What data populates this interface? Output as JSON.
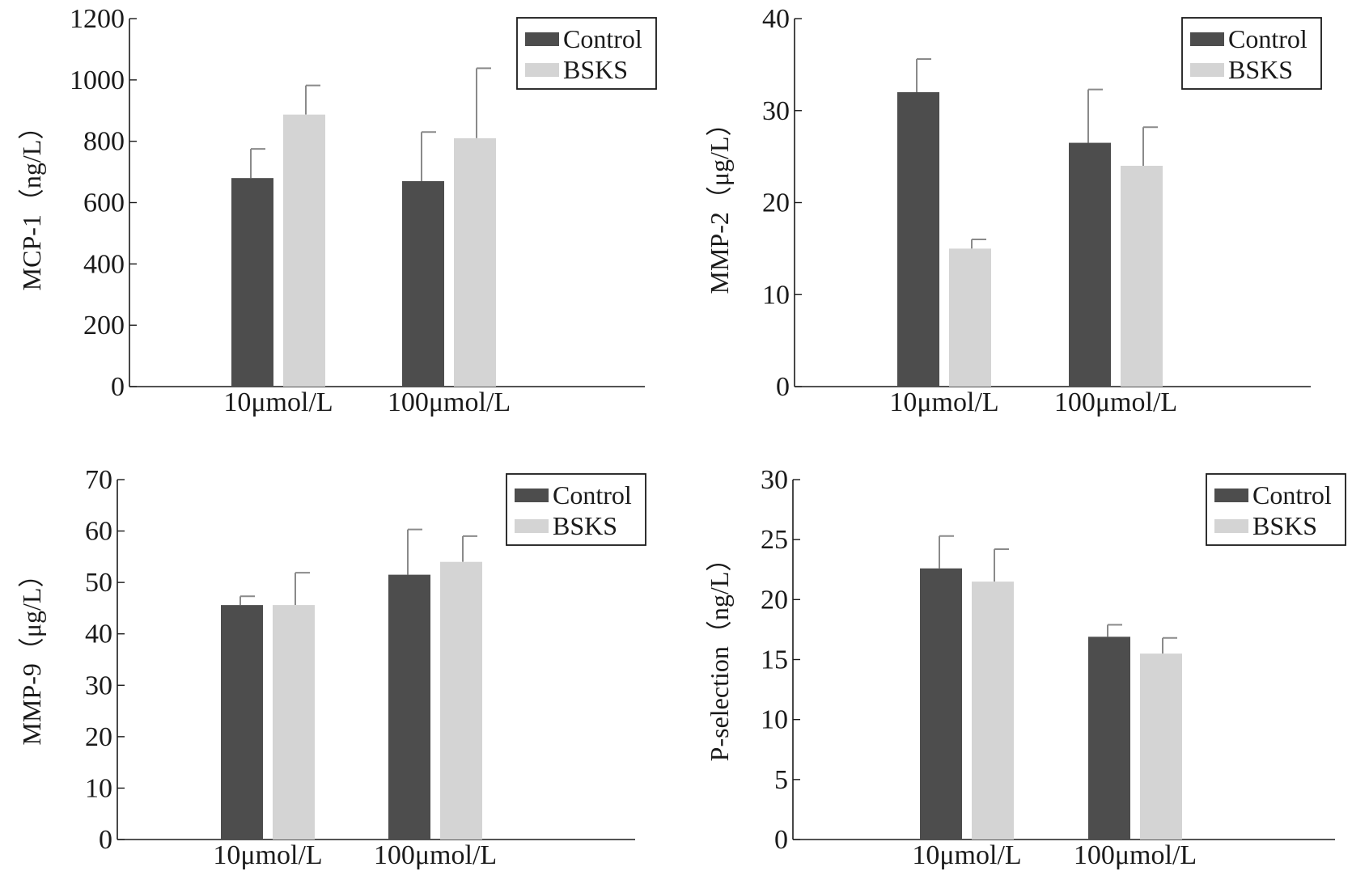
{
  "colors": {
    "control": "#4d4d4d",
    "bsks": "#d4d4d4",
    "error_bar": "#8a8a8a",
    "axis": "#1a1a1a"
  },
  "legend": [
    "Control",
    "BSKS"
  ],
  "chart_data": [
    {
      "type": "bar",
      "categories": [
        "10μmol/L",
        "100μmol/L"
      ],
      "ylabel": "MCP-1（ng/L）",
      "ylim": [
        0,
        1200
      ],
      "yticks": [
        0,
        200,
        400,
        600,
        800,
        1000,
        1200
      ],
      "legend_position": "top-right",
      "series": [
        {
          "name": "Control",
          "values": [
            680,
            670
          ],
          "errors": [
            95,
            160
          ]
        },
        {
          "name": "BSKS",
          "values": [
            887,
            810
          ],
          "errors": [
            95,
            228
          ]
        }
      ]
    },
    {
      "type": "bar",
      "categories": [
        "10μmol/L",
        "100μmol/L"
      ],
      "ylabel": "MMP-2（μg/L）",
      "ylim": [
        0,
        40
      ],
      "yticks": [
        0,
        10,
        20,
        30,
        40
      ],
      "legend_position": "top-right",
      "series": [
        {
          "name": "Control",
          "values": [
            32,
            26.5
          ],
          "errors": [
            3.6,
            5.8
          ]
        },
        {
          "name": "BSKS",
          "values": [
            15,
            24
          ],
          "errors": [
            1,
            4.2
          ]
        }
      ]
    },
    {
      "type": "bar",
      "categories": [
        "10μmol/L",
        "100μmol/L"
      ],
      "ylabel": "MMP-9（μg/L）",
      "ylim": [
        0,
        70
      ],
      "yticks": [
        0,
        10,
        20,
        30,
        40,
        50,
        60,
        70
      ],
      "legend_position": "top-right",
      "series": [
        {
          "name": "Control",
          "values": [
            45.6,
            51.5
          ],
          "errors": [
            1.7,
            8.8
          ]
        },
        {
          "name": "BSKS",
          "values": [
            45.6,
            54
          ],
          "errors": [
            6.3,
            5
          ]
        }
      ]
    },
    {
      "type": "bar",
      "categories": [
        "10μmol/L",
        "100μmol/L"
      ],
      "ylabel": "P-selection（ng/L）",
      "ylim": [
        0,
        30
      ],
      "yticks": [
        0,
        5,
        10,
        15,
        20,
        25,
        30
      ],
      "legend_position": "top-right",
      "series": [
        {
          "name": "Control",
          "values": [
            22.6,
            16.9
          ],
          "errors": [
            2.7,
            1
          ]
        },
        {
          "name": "BSKS",
          "values": [
            21.5,
            15.5
          ],
          "errors": [
            2.7,
            1.3
          ]
        }
      ]
    }
  ]
}
